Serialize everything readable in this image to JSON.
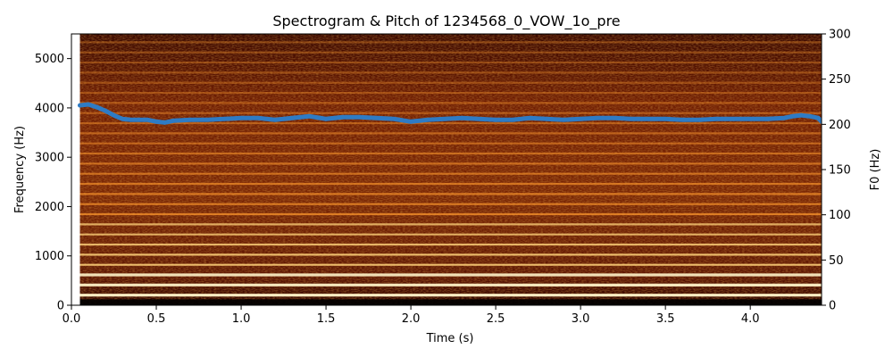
{
  "chart_data": {
    "type": "spectrogram",
    "title": "Spectrogram & Pitch of 1234568_0_VOW_1o_pre",
    "xlabel": "Time (s)",
    "ylabel": "Frequency (Hz)",
    "y2label": "F0 (Hz)",
    "xlim": [
      0.0,
      4.42
    ],
    "ylim": [
      0,
      5500
    ],
    "y2lim": [
      0,
      300
    ],
    "xticks": [
      "0.0",
      "0.5",
      "1.0",
      "1.5",
      "2.0",
      "2.5",
      "3.0",
      "3.5",
      "4.0"
    ],
    "yticks": [
      "0",
      "1000",
      "2000",
      "3000",
      "4000",
      "5000"
    ],
    "y2ticks": [
      "0",
      "50",
      "100",
      "150",
      "200",
      "250",
      "300"
    ],
    "colormap": "afmhot",
    "pitch_color": "#2e7bc4",
    "spectrogram_time_range": [
      0.05,
      4.42
    ],
    "pitch": {
      "time": [
        0.05,
        0.1,
        0.15,
        0.2,
        0.25,
        0.3,
        0.35,
        0.4,
        0.45,
        0.5,
        0.55,
        0.6,
        0.7,
        0.8,
        0.9,
        1.0,
        1.1,
        1.2,
        1.3,
        1.4,
        1.5,
        1.6,
        1.7,
        1.8,
        1.9,
        2.0,
        2.1,
        2.2,
        2.3,
        2.4,
        2.5,
        2.6,
        2.7,
        2.8,
        2.9,
        3.0,
        3.1,
        3.2,
        3.3,
        3.4,
        3.5,
        3.6,
        3.7,
        3.8,
        3.9,
        4.0,
        4.1,
        4.2,
        4.25,
        4.3,
        4.35,
        4.4,
        4.42
      ],
      "f0": [
        221,
        222,
        219,
        215,
        210,
        206,
        205,
        205,
        205,
        203,
        202,
        204,
        205,
        205,
        206,
        207,
        207,
        205,
        207,
        209,
        206,
        208,
        208,
        207,
        206,
        203,
        205,
        206,
        207,
        206,
        205,
        205,
        207,
        206,
        205,
        206,
        207,
        207,
        206,
        206,
        206,
        205,
        205,
        206,
        206,
        206,
        206,
        207,
        209,
        210,
        209,
        207,
        203
      ]
    },
    "harmonic_spacing_hz": 205,
    "harmonic_count": 26
  }
}
